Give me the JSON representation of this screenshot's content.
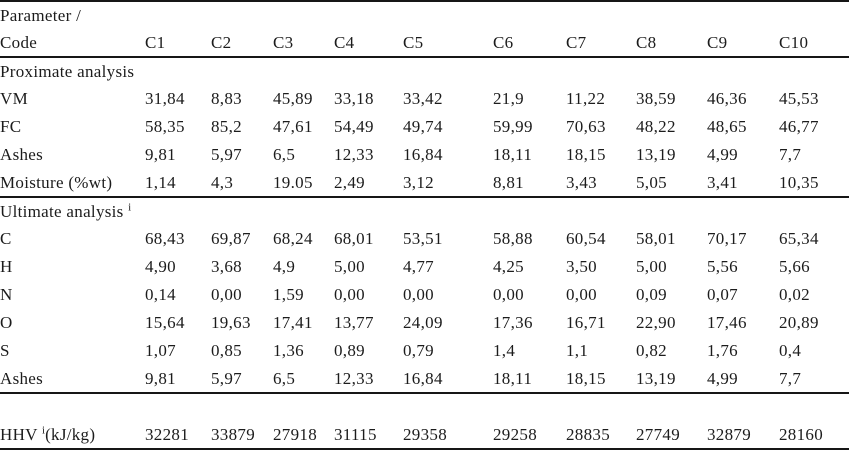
{
  "table": {
    "header": {
      "row1_label": "Parameter /",
      "row2_label": "Code",
      "columns": [
        "C1",
        "C2",
        "C3",
        "C4",
        "C5",
        "C6",
        "C7",
        "C8",
        "C9",
        "C10"
      ]
    },
    "sections": [
      {
        "title": "Proximate analysis",
        "sup": "",
        "rows": [
          {
            "label": "VM",
            "values": [
              "31,84",
              "8,83",
              "45,89",
              "33,18",
              "33,42",
              "21,9",
              "11,22",
              "38,59",
              "46,36",
              "45,53"
            ]
          },
          {
            "label": "FC",
            "values": [
              "58,35",
              "85,2",
              "47,61",
              "54,49",
              "49,74",
              "59,99",
              "70,63",
              "48,22",
              "48,65",
              "46,77"
            ]
          },
          {
            "label": "Ashes",
            "values": [
              "9,81",
              "5,97",
              "6,5",
              "12,33",
              "16,84",
              "18,11",
              "18,15",
              "13,19",
              "4,99",
              "7,7"
            ]
          },
          {
            "label": "Moisture (%wt)",
            "values": [
              "1,14",
              "4,3",
              "19.05",
              "2,49",
              "3,12",
              "8,81",
              "3,43",
              "5,05",
              "3,41",
              "10,35"
            ]
          }
        ]
      },
      {
        "title": "Ultimate analysis",
        "sup": "i",
        "rows": [
          {
            "label": "C",
            "values": [
              "68,43",
              "69,87",
              "68,24",
              "68,01",
              "53,51",
              "58,88",
              "60,54",
              "58,01",
              "70,17",
              "65,34"
            ]
          },
          {
            "label": "H",
            "values": [
              "4,90",
              "3,68",
              "4,9",
              "5,00",
              "4,77",
              "4,25",
              "3,50",
              "5,00",
              "5,56",
              "5,66"
            ]
          },
          {
            "label": "N",
            "values": [
              "0,14",
              "0,00",
              "1,59",
              "0,00",
              "0,00",
              "0,00",
              "0,00",
              "0,09",
              "0,07",
              "0,02"
            ]
          },
          {
            "label": "O",
            "values": [
              "15,64",
              "19,63",
              "17,41",
              "13,77",
              "24,09",
              "17,36",
              "16,71",
              "22,90",
              "17,46",
              "20,89"
            ]
          },
          {
            "label": "S",
            "values": [
              "1,07",
              "0,85",
              "1,36",
              "0,89",
              "0,79",
              "1,4",
              "1,1",
              "0,82",
              "1,76",
              "0,4"
            ]
          },
          {
            "label": "Ashes",
            "values": [
              "9,81",
              "5,97",
              "6,5",
              "12,33",
              "16,84",
              "18,11",
              "18,15",
              "13,19",
              "4,99",
              "7,7"
            ]
          }
        ]
      }
    ],
    "footer": {
      "label": "HHV",
      "sup": "i",
      "unit": "(kJ/kg)",
      "values": [
        "32281",
        "33879",
        "27918",
        "31115",
        "29358",
        "29258",
        "28835",
        "27749",
        "32879",
        "28160"
      ]
    }
  }
}
